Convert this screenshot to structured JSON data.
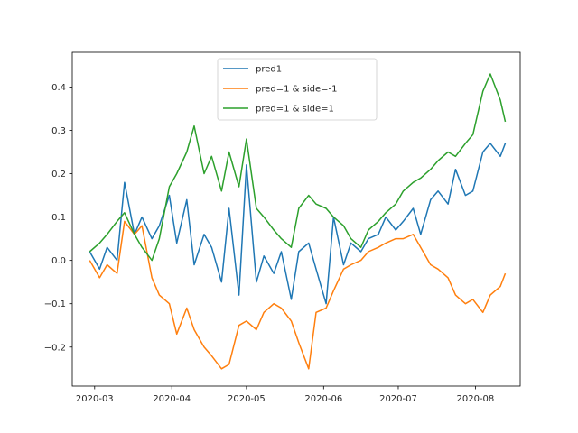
{
  "chart_data": {
    "type": "line",
    "x_dates": [
      "2020-02-28",
      "2020-03-03",
      "2020-03-06",
      "2020-03-10",
      "2020-03-13",
      "2020-03-17",
      "2020-03-20",
      "2020-03-24",
      "2020-03-27",
      "2020-03-31",
      "2020-04-03",
      "2020-04-07",
      "2020-04-10",
      "2020-04-14",
      "2020-04-17",
      "2020-04-21",
      "2020-04-24",
      "2020-04-28",
      "2020-05-01",
      "2020-05-05",
      "2020-05-08",
      "2020-05-12",
      "2020-05-15",
      "2020-05-19",
      "2020-05-22",
      "2020-05-26",
      "2020-05-29",
      "2020-06-02",
      "2020-06-05",
      "2020-06-09",
      "2020-06-12",
      "2020-06-16",
      "2020-06-19",
      "2020-06-23",
      "2020-06-26",
      "2020-06-30",
      "2020-07-03",
      "2020-07-07",
      "2020-07-10",
      "2020-07-14",
      "2020-07-17",
      "2020-07-21",
      "2020-07-24",
      "2020-07-28",
      "2020-07-31",
      "2020-08-04",
      "2020-08-07",
      "2020-08-11",
      "2020-08-13"
    ],
    "series": [
      {
        "name": "pred1",
        "color": "#1f77b4",
        "values": [
          0.02,
          -0.02,
          0.03,
          0.0,
          0.18,
          0.06,
          0.1,
          0.05,
          0.08,
          0.15,
          0.04,
          0.14,
          -0.01,
          0.06,
          0.03,
          -0.05,
          0.12,
          -0.08,
          0.22,
          -0.05,
          0.01,
          -0.03,
          0.02,
          -0.09,
          0.02,
          0.04,
          -0.02,
          -0.1,
          0.1,
          -0.01,
          0.04,
          0.02,
          0.05,
          0.06,
          0.1,
          0.07,
          0.09,
          0.12,
          0.06,
          0.14,
          0.16,
          0.13,
          0.21,
          0.15,
          0.16,
          0.25,
          0.27,
          0.24,
          0.27
        ]
      },
      {
        "name": "pred=1 & side=-1",
        "color": "#ff7f0e",
        "values": [
          0.0,
          -0.04,
          -0.01,
          -0.03,
          0.09,
          0.06,
          0.08,
          -0.04,
          -0.08,
          -0.1,
          -0.17,
          -0.11,
          -0.16,
          -0.2,
          -0.22,
          -0.25,
          -0.24,
          -0.15,
          -0.14,
          -0.16,
          -0.12,
          -0.1,
          -0.11,
          -0.14,
          -0.19,
          -0.25,
          -0.12,
          -0.11,
          -0.07,
          -0.02,
          -0.01,
          0.0,
          0.02,
          0.03,
          0.04,
          0.05,
          0.05,
          0.06,
          0.03,
          -0.01,
          -0.02,
          -0.04,
          -0.08,
          -0.1,
          -0.09,
          -0.12,
          -0.08,
          -0.06,
          -0.03
        ]
      },
      {
        "name": "pred=1 & side=1",
        "color": "#2ca02c",
        "values": [
          0.02,
          0.04,
          0.06,
          0.09,
          0.11,
          0.06,
          0.03,
          0.0,
          0.05,
          0.17,
          0.2,
          0.25,
          0.31,
          0.2,
          0.24,
          0.16,
          0.25,
          0.17,
          0.28,
          0.12,
          0.1,
          0.07,
          0.05,
          0.03,
          0.12,
          0.15,
          0.13,
          0.12,
          0.1,
          0.08,
          0.05,
          0.03,
          0.07,
          0.09,
          0.11,
          0.13,
          0.16,
          0.18,
          0.19,
          0.21,
          0.23,
          0.25,
          0.24,
          0.27,
          0.29,
          0.39,
          0.43,
          0.37,
          0.32
        ]
      }
    ],
    "xticks": [
      "2020-03",
      "2020-04",
      "2020-05",
      "2020-06",
      "2020-07",
      "2020-08"
    ],
    "yticks": [
      "−0.2",
      "−0.1",
      "0.0",
      "0.1",
      "0.2",
      "0.3",
      "0.4"
    ],
    "ylim": [
      -0.29,
      0.48
    ],
    "xlim": [
      "2020-02-21",
      "2020-08-19"
    ],
    "legend_position": "top-center",
    "grid": false
  }
}
